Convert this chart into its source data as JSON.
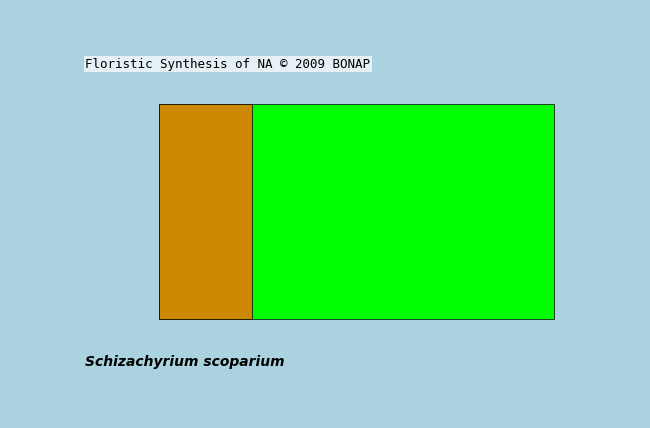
{
  "title_text": "Floristic Synthesis of NA © 2009 BONAP",
  "species_text": "Schizachyrium scoparium",
  "background_color": "#aad3df",
  "ocean_color": "#aad3df",
  "title_fontsize": 9,
  "species_fontsize": 10,
  "colors": {
    "present_native": "#00ff00",
    "present_non_native": "#00cc00",
    "not_present_native_range": "#1a6600",
    "not_present": "#4a4a4a",
    "out_of_range": "#cc8800",
    "water": "#aad3df",
    "mexico_canada": "#b0b0b0",
    "yellow_special": "#ffff00"
  },
  "figsize": [
    6.5,
    4.28
  ],
  "dpi": 100
}
